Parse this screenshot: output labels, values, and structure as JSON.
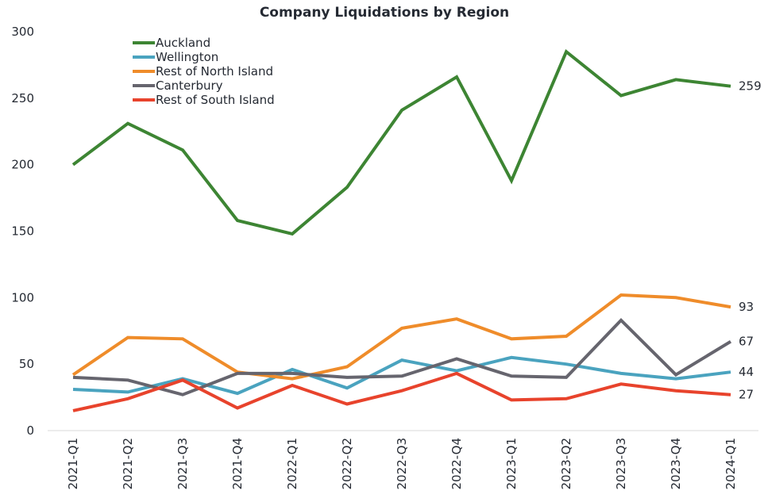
{
  "chart_data": {
    "type": "line",
    "title": "Company Liquidations by Region",
    "xlabel": "",
    "ylabel": "",
    "ylim": [
      0,
      300
    ],
    "yticks": [
      0,
      50,
      100,
      150,
      200,
      250,
      300
    ],
    "grid": false,
    "legend_position": "top-left",
    "categories": [
      "2021-Q1",
      "2021-Q2",
      "2021-Q3",
      "2021-Q4",
      "2022-Q1",
      "2022-Q2",
      "2022-Q3",
      "2022-Q4",
      "2023-Q1",
      "2023-Q2",
      "2023-Q3",
      "2023-Q4",
      "2024-Q1"
    ],
    "series": [
      {
        "name": "Auckland",
        "color": "#3d8533",
        "values": [
          200,
          231,
          211,
          158,
          148,
          183,
          241,
          266,
          188,
          285,
          252,
          264,
          259
        ],
        "end_label": "259"
      },
      {
        "name": "Wellington",
        "color": "#4aa3bf",
        "values": [
          31,
          29,
          39,
          28,
          46,
          32,
          53,
          45,
          55,
          50,
          43,
          39,
          44
        ],
        "end_label": "44"
      },
      {
        "name": "Rest of North Island",
        "color": "#ef8c2a",
        "values": [
          42,
          70,
          69,
          44,
          39,
          48,
          77,
          84,
          69,
          71,
          102,
          100,
          93
        ],
        "end_label": "93"
      },
      {
        "name": "Canterbury",
        "color": "#66656e",
        "values": [
          40,
          38,
          27,
          43,
          43,
          40,
          41,
          54,
          41,
          40,
          83,
          42,
          67
        ],
        "end_label": "67"
      },
      {
        "name": "Rest of South Island",
        "color": "#e8432c",
        "values": [
          15,
          24,
          38,
          17,
          34,
          20,
          30,
          43,
          23,
          24,
          35,
          30,
          27
        ],
        "end_label": "27"
      }
    ]
  }
}
